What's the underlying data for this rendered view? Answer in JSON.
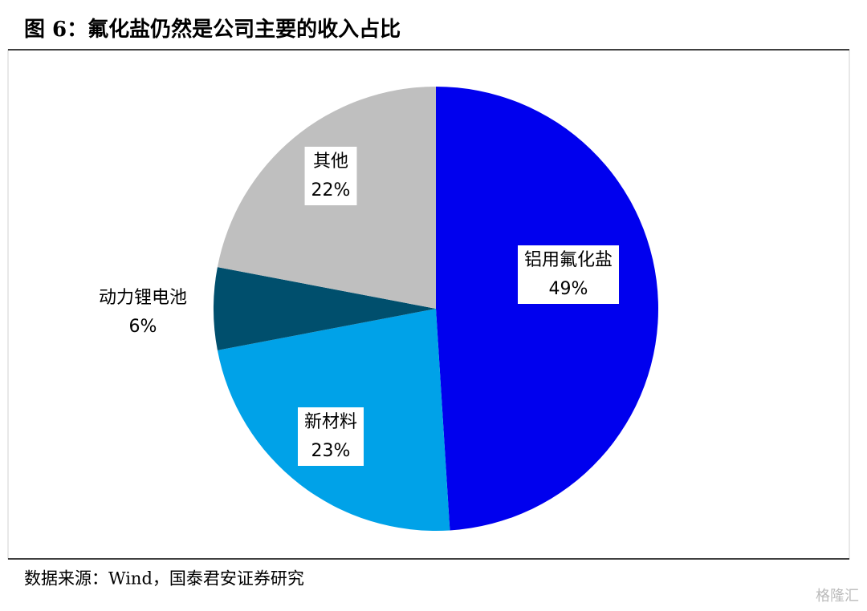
{
  "chart_data": {
    "type": "pie",
    "title": "图 6：氟化盐仍然是公司主要的收入占比",
    "categories": [
      "铝用氟化盐",
      "新材料",
      "动力锂电池",
      "其他"
    ],
    "values": [
      49,
      23,
      6,
      22
    ],
    "value_labels": [
      "49%",
      "23%",
      "6%",
      "22%"
    ],
    "colors": [
      "#0000ee",
      "#00a2e8",
      "#004f6d",
      "#bfbfbf"
    ],
    "source": "数据来源：Wind，国泰君安证券研究",
    "watermark": "格隆汇"
  }
}
